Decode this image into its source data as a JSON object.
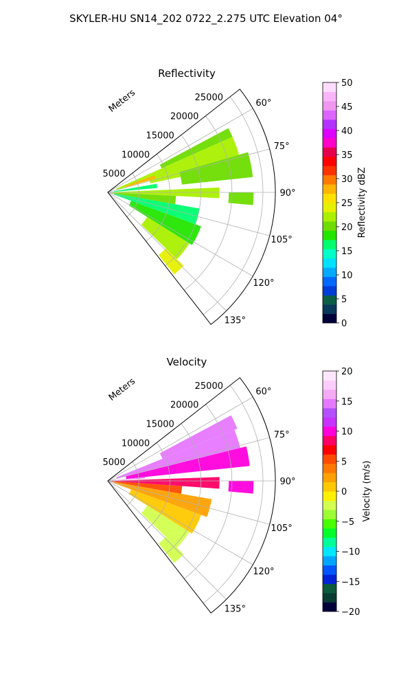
{
  "figure": {
    "suptitle": "SKYLER-HU  SN14_202  0722_2.275 UTC Elevation 04°"
  },
  "chart_data": [
    {
      "type": "heatmap",
      "projection": "polar-sector",
      "title": "Reflectivity",
      "radial_axis_label": "Meters",
      "radial_ticks": [
        5000,
        10000,
        15000,
        20000,
        25000
      ],
      "radial_tick_labels": [
        "5000",
        "10000",
        "15000",
        "20000",
        "25000"
      ],
      "rlim": [
        0,
        27000
      ],
      "azimuth_range_deg": [
        52,
        142
      ],
      "azimuth_ticks": [
        60,
        75,
        90,
        105,
        120,
        135
      ],
      "azimuth_tick_labels": [
        "60°",
        "75°",
        "90°",
        "105°",
        "120°",
        "135°"
      ],
      "grid": true,
      "colorbar": {
        "label": "Reflectivity dBZ",
        "range": [
          0,
          50
        ],
        "ticks": [
          0,
          5,
          10,
          15,
          20,
          25,
          30,
          35,
          40,
          45,
          50
        ],
        "tick_labels": [
          "0",
          "5",
          "10",
          "15",
          "20",
          "25",
          "30",
          "35",
          "40",
          "45",
          "50"
        ]
      },
      "field_sectors": [
        {
          "az": [
            62,
            66
          ],
          "r": [
            9500,
            22000
          ],
          "value": 21
        },
        {
          "az": [
            66,
            74
          ],
          "r": [
            1500,
            22000
          ],
          "value": 22
        },
        {
          "az": [
            70,
            74
          ],
          "r": [
            3000,
            8000
          ],
          "value": 28
        },
        {
          "az": [
            74,
            78
          ],
          "r": [
            7000,
            12000
          ],
          "value": 22
        },
        {
          "az": [
            74,
            84
          ],
          "r": [
            12000,
            23500
          ],
          "value": 21
        },
        {
          "az": [
            80,
            85
          ],
          "r": [
            1000,
            8000
          ],
          "value": 16
        },
        {
          "az": [
            87.5,
            93
          ],
          "r": [
            0,
            18000
          ],
          "value": 22
        },
        {
          "az": [
            90,
            95
          ],
          "r": [
            19500,
            23500
          ],
          "value": 21
        },
        {
          "az": [
            93,
            100
          ],
          "r": [
            0,
            11000
          ],
          "value": 20
        },
        {
          "az": [
            100,
            110
          ],
          "r": [
            1000,
            15000
          ],
          "value": 16
        },
        {
          "az": [
            110,
            122
          ],
          "r": [
            4000,
            16000
          ],
          "value": 19
        },
        {
          "az": [
            122,
            134
          ],
          "r": [
            7500,
            15500
          ],
          "value": 23
        },
        {
          "az": [
            134,
            141
          ],
          "r": [
            13000,
            17000
          ],
          "value": 24
        }
      ]
    },
    {
      "type": "heatmap",
      "projection": "polar-sector",
      "title": "Velocity",
      "radial_axis_label": "Meters",
      "radial_ticks": [
        5000,
        10000,
        15000,
        20000,
        25000
      ],
      "radial_tick_labels": [
        "5000",
        "10000",
        "15000",
        "20000",
        "25000"
      ],
      "rlim": [
        0,
        27000
      ],
      "azimuth_range_deg": [
        52,
        142
      ],
      "azimuth_ticks": [
        60,
        75,
        90,
        105,
        120,
        135
      ],
      "azimuth_tick_labels": [
        "60°",
        "75°",
        "90°",
        "105°",
        "120°",
        "135°"
      ],
      "grid": true,
      "colorbar": {
        "label": "Velocity (m/s)",
        "range": [
          -20,
          20
        ],
        "ticks": [
          -20,
          -15,
          -10,
          -5,
          0,
          5,
          10,
          15,
          20
        ],
        "tick_labels": [
          "−20",
          "−15",
          "−10",
          "−5",
          "0",
          "5",
          "10",
          "15",
          "20"
        ]
      },
      "field_sectors": [
        {
          "az": [
            62,
            68
          ],
          "r": [
            9500,
            22500
          ],
          "value": 14
        },
        {
          "az": [
            68,
            76
          ],
          "r": [
            1500,
            22000
          ],
          "value": 14
        },
        {
          "az": [
            76,
            84
          ],
          "r": [
            3000,
            23000
          ],
          "value": 10
        },
        {
          "az": [
            84,
            86
          ],
          "r": [
            0,
            6000
          ],
          "value": 14
        },
        {
          "az": [
            88,
            94
          ],
          "r": [
            0,
            18000
          ],
          "value": 9
        },
        {
          "az": [
            90,
            95
          ],
          "r": [
            19500,
            23500
          ],
          "value": 10
        },
        {
          "az": [
            94,
            100
          ],
          "r": [
            0,
            12000
          ],
          "value": 5
        },
        {
          "az": [
            100,
            110
          ],
          "r": [
            1000,
            17000
          ],
          "value": 2
        },
        {
          "az": [
            110,
            122
          ],
          "r": [
            4000,
            16000
          ],
          "value": 0
        },
        {
          "az": [
            122,
            134
          ],
          "r": [
            7500,
            15500
          ],
          "value": -2
        },
        {
          "az": [
            134,
            141
          ],
          "r": [
            13000,
            17000
          ],
          "value": -2
        }
      ]
    }
  ]
}
